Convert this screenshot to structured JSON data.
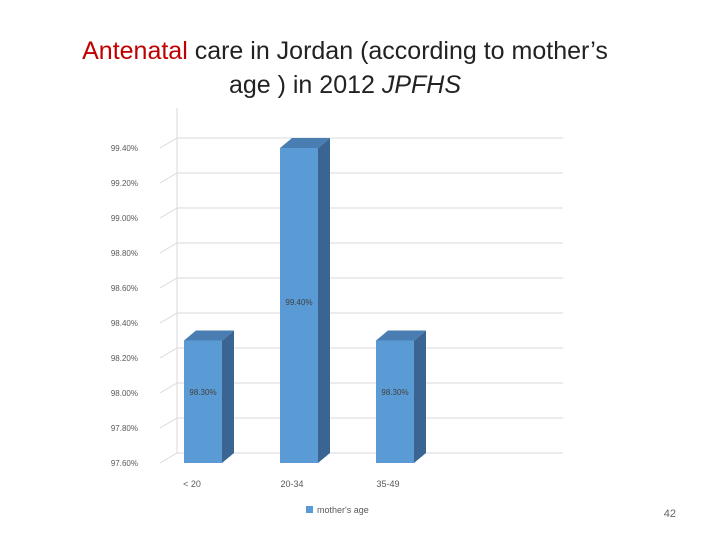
{
  "slide": {
    "title_accent": "Antenatal",
    "title_rest": " care in Jordan (according to mother’s age ) in 2012 ",
    "title_italic": "JPFHS",
    "page_number": "42"
  },
  "chart_data": {
    "type": "bar",
    "style": "3d-column",
    "categories": [
      "< 20",
      "20-34",
      "35-49"
    ],
    "series": [
      {
        "name": "mother's age",
        "values": [
          98.3,
          99.4,
          98.3
        ],
        "color": "#5b9bd5"
      }
    ],
    "data_labels": [
      "98.30%",
      "99.40%",
      "98.30%"
    ],
    "ylim": [
      97.6,
      99.4
    ],
    "y_ticks": [
      97.6,
      97.8,
      98.0,
      98.2,
      98.4,
      98.6,
      98.8,
      99.0,
      99.2,
      99.4
    ],
    "y_tick_labels": [
      "97.60%",
      "97.80%",
      "98.00%",
      "98.20%",
      "98.40%",
      "98.60%",
      "98.80%",
      "99.00%",
      "99.20%",
      "99.40%"
    ],
    "gridlines": true,
    "legend": "bottom",
    "title": "",
    "xlabel": "",
    "ylabel": ""
  }
}
